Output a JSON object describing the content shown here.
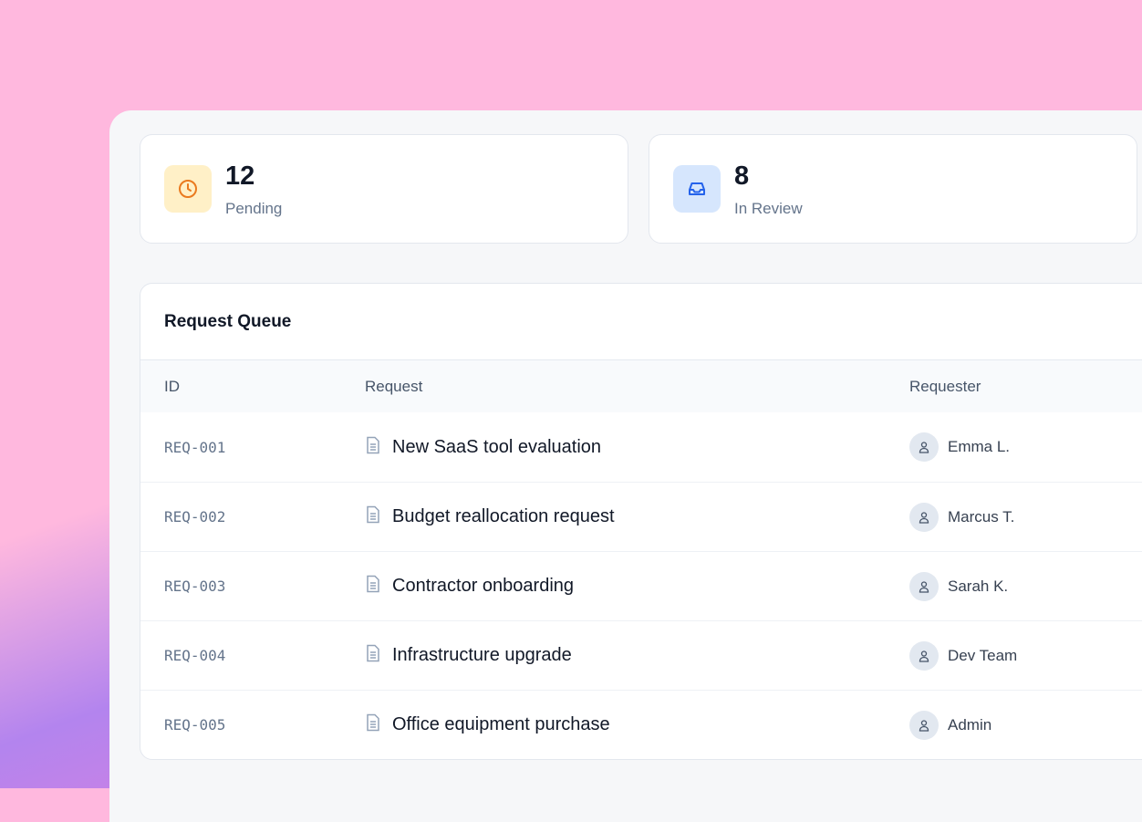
{
  "stats": [
    {
      "value": "12",
      "label": "Pending",
      "icon": "clock-icon",
      "icon_color": "#ea7a1f",
      "icon_bg": "#fff0c7"
    },
    {
      "value": "8",
      "label": "In Review",
      "icon": "inbox-icon",
      "icon_color": "#2563eb",
      "icon_bg": "#d6e6fd"
    }
  ],
  "queue": {
    "title": "Request Queue",
    "columns": [
      "ID",
      "Request",
      "Requester"
    ],
    "rows": [
      {
        "id": "REQ-001",
        "request": "New SaaS tool evaluation",
        "requester": "Emma L."
      },
      {
        "id": "REQ-002",
        "request": "Budget reallocation request",
        "requester": "Marcus T."
      },
      {
        "id": "REQ-003",
        "request": "Contractor onboarding",
        "requester": "Sarah K."
      },
      {
        "id": "REQ-004",
        "request": "Infrastructure upgrade",
        "requester": "Dev Team"
      },
      {
        "id": "REQ-005",
        "request": "Office equipment purchase",
        "requester": "Admin"
      }
    ]
  }
}
